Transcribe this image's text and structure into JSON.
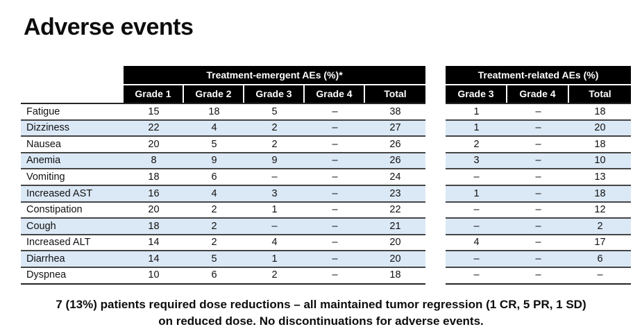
{
  "page": {
    "title": "Adverse events",
    "footnote_line1": "7 (13%) patients required dose reductions – all maintained tumor regression (1 CR, 5 PR, 1 SD)",
    "footnote_line2": "on reduced dose. No discontinuations for adverse events."
  },
  "colors": {
    "header_bg": "#000000",
    "header_text": "#ffffff",
    "stripe_blue": "#dbe8f6",
    "row_line": "#454545"
  },
  "emergent_table": {
    "title": "Treatment-emergent AEs (%)*",
    "columns": [
      "Grade 1",
      "Grade 2",
      "Grade 3",
      "Grade 4",
      "Total"
    ]
  },
  "related_table": {
    "title": "Treatment-related AEs (%)",
    "columns": [
      "Grade 3",
      "Grade 4",
      "Total"
    ]
  },
  "rows": [
    {
      "label": "Fatigue",
      "emergent": [
        "15",
        "18",
        "5",
        "–",
        "38"
      ],
      "related": [
        "1",
        "–",
        "18"
      ]
    },
    {
      "label": "Dizziness",
      "emergent": [
        "22",
        "4",
        "2",
        "–",
        "27"
      ],
      "related": [
        "1",
        "–",
        "20"
      ]
    },
    {
      "label": "Nausea",
      "emergent": [
        "20",
        "5",
        "2",
        "–",
        "26"
      ],
      "related": [
        "2",
        "–",
        "18"
      ]
    },
    {
      "label": "Anemia",
      "emergent": [
        "8",
        "9",
        "9",
        "–",
        "26"
      ],
      "related": [
        "3",
        "–",
        "10"
      ]
    },
    {
      "label": "Vomiting",
      "emergent": [
        "18",
        "6",
        "–",
        "–",
        "24"
      ],
      "related": [
        "–",
        "–",
        "13"
      ]
    },
    {
      "label": "Increased AST",
      "emergent": [
        "16",
        "4",
        "3",
        "–",
        "23"
      ],
      "related": [
        "1",
        "–",
        "18"
      ]
    },
    {
      "label": "Constipation",
      "emergent": [
        "20",
        "2",
        "1",
        "–",
        "22"
      ],
      "related": [
        "–",
        "–",
        "12"
      ]
    },
    {
      "label": "Cough",
      "emergent": [
        "18",
        "2",
        "–",
        "–",
        "21"
      ],
      "related": [
        "–",
        "–",
        "2"
      ]
    },
    {
      "label": "Increased ALT",
      "emergent": [
        "14",
        "2",
        "4",
        "–",
        "20"
      ],
      "related": [
        "4",
        "–",
        "17"
      ]
    },
    {
      "label": "Diarrhea",
      "emergent": [
        "14",
        "5",
        "1",
        "–",
        "20"
      ],
      "related": [
        "–",
        "–",
        "6"
      ]
    },
    {
      "label": "Dyspnea",
      "emergent": [
        "10",
        "6",
        "2",
        "–",
        "18"
      ],
      "related": [
        "–",
        "–",
        "–"
      ]
    }
  ]
}
